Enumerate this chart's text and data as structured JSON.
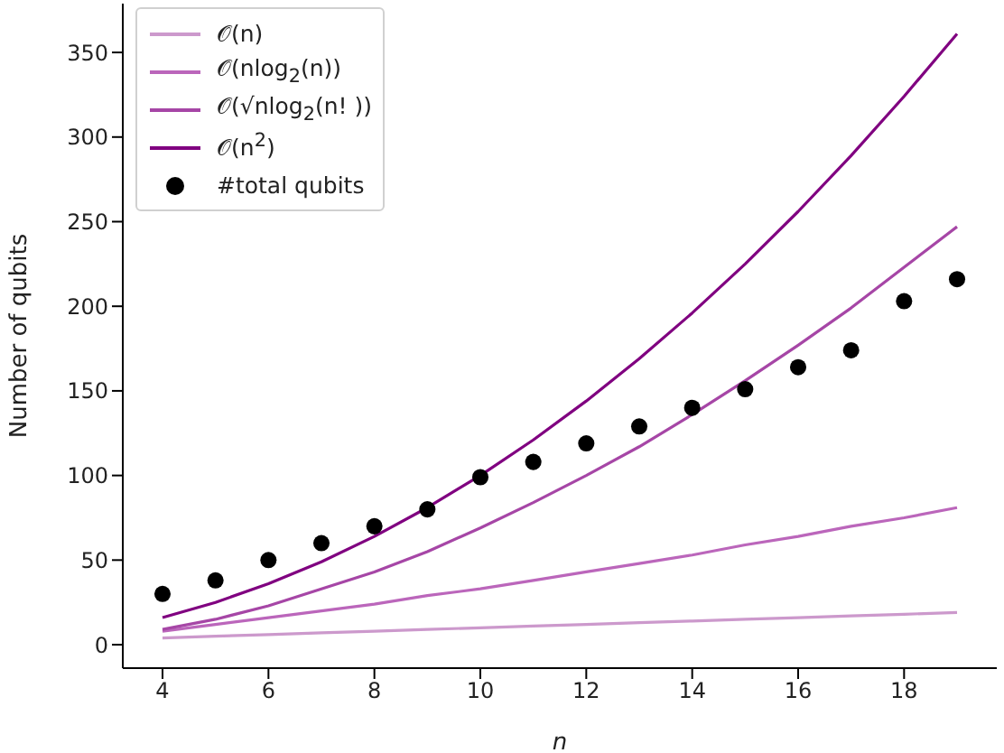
{
  "chart_data": {
    "type": "line",
    "xlabel": "n",
    "ylabel": "Number of qubits",
    "x": [
      4,
      5,
      6,
      7,
      8,
      9,
      10,
      11,
      12,
      13,
      14,
      15,
      16,
      17,
      18,
      19
    ],
    "series": [
      {
        "name": "𝒪(n)",
        "marker": "none",
        "color": "#cc99cc",
        "values": [
          4,
          5,
          6,
          7,
          8,
          9,
          10,
          11,
          12,
          13,
          14,
          15,
          16,
          17,
          18,
          19
        ]
      },
      {
        "name": "𝒪(nlog$_{2}$(n))",
        "marker": "none",
        "color": "#bb66bb",
        "values": [
          8,
          12,
          16,
          20,
          24,
          29,
          33,
          38,
          43,
          48,
          53,
          59,
          64,
          70,
          75,
          81
        ]
      },
      {
        "name": "𝒪(√nlog$_{2}$(n! ))",
        "marker": "none",
        "color": "#a646a6",
        "values": [
          9,
          15,
          23,
          33,
          43,
          55,
          69,
          84,
          100,
          117,
          136,
          156,
          177,
          199,
          223,
          247
        ]
      },
      {
        "name": "𝒪(n$^{2}$)",
        "marker": "none",
        "color": "#800080",
        "values": [
          16,
          25,
          36,
          49,
          64,
          81,
          100,
          121,
          144,
          169,
          196,
          225,
          256,
          289,
          324,
          361
        ]
      },
      {
        "name": "#total qubits",
        "type": "scatter",
        "marker": "circle",
        "color": "#000000",
        "values": [
          30,
          38,
          50,
          60,
          70,
          80,
          99,
          108,
          119,
          129,
          140,
          151,
          164,
          174,
          203,
          216
        ]
      }
    ],
    "xlim": [
      3.25,
      19.75
    ],
    "xticks": [
      4,
      6,
      8,
      10,
      12,
      14,
      16,
      18
    ],
    "ylim": [
      -13.85,
      378.85
    ],
    "yticks": [
      0,
      50,
      100,
      150,
      200,
      250,
      300,
      350
    ],
    "grid": false,
    "legend": "top left",
    "line_style": "solid"
  }
}
